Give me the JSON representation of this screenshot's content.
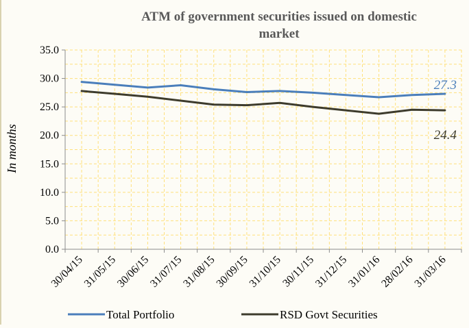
{
  "chart_data": {
    "type": "line",
    "title_line1": "ATM of government securities issued on domestic",
    "title_line2": "market",
    "ylabel": "In months",
    "xlabel": "",
    "ylim": [
      0,
      35
    ],
    "yticks": [
      "0.0",
      "5.0",
      "10.0",
      "15.0",
      "20.0",
      "25.0",
      "30.0",
      "35.0"
    ],
    "categories": [
      "30/04/15",
      "31/05/15",
      "30/06/15",
      "31/07/15",
      "31/08/15",
      "30/09/15",
      "31/10/15",
      "30/11/15",
      "31/12/15",
      "31/01/16",
      "28/02/16",
      "31/03/16"
    ],
    "grid": true,
    "legend_position": "bottom",
    "series": [
      {
        "name": "Total Portfolio",
        "color": "#4a7ebb",
        "values": [
          29.4,
          28.9,
          28.4,
          28.8,
          28.1,
          27.6,
          27.8,
          27.5,
          27.1,
          26.7,
          27.1,
          27.3
        ],
        "end_label": "27.3"
      },
      {
        "name": "RSD Govt Securities",
        "color": "#3d3b2c",
        "values": [
          27.8,
          27.3,
          26.8,
          26.1,
          25.4,
          25.3,
          25.7,
          25.0,
          24.4,
          23.8,
          24.5,
          24.4
        ],
        "end_label": "24.4"
      }
    ],
    "colors": {
      "grid": "#ffe07a",
      "axis": "#8c8c8c",
      "background": "#fdfcf6"
    }
  }
}
